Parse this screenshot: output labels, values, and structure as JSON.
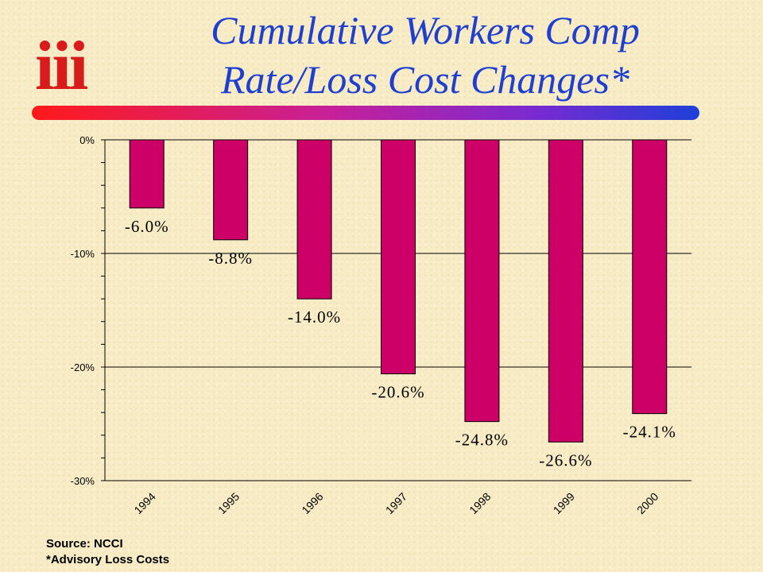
{
  "logo": {
    "text": "iii"
  },
  "title": {
    "line1": "Cumulative Workers Comp",
    "line2": "Rate/Loss Cost Changes*"
  },
  "colors": {
    "bar": "#cc0066",
    "title": "#1e3fcf",
    "logo": "#d81b1b"
  },
  "chart_data": {
    "type": "bar",
    "title": "Cumulative Workers Comp Rate/Loss Cost Changes*",
    "xlabel": "",
    "ylabel": "",
    "categories": [
      "1994",
      "1995",
      "1996",
      "1997",
      "1998",
      "1999",
      "2000"
    ],
    "values": [
      -6.0,
      -8.8,
      -14.0,
      -20.6,
      -24.8,
      -26.6,
      -24.1
    ],
    "data_labels": [
      "-6.0%",
      "-8.8%",
      "-14.0%",
      "-20.6%",
      "-24.8%",
      "-26.6%",
      "-24.1%"
    ],
    "ylim": [
      -30,
      0
    ],
    "yticks": [
      0,
      -10,
      -20,
      -30
    ],
    "ytick_labels": [
      "0%",
      "-10%",
      "-20%",
      "-30%"
    ],
    "grid": true
  },
  "footer": {
    "source": "Source: NCCI",
    "note": "*Advisory Loss Costs"
  }
}
